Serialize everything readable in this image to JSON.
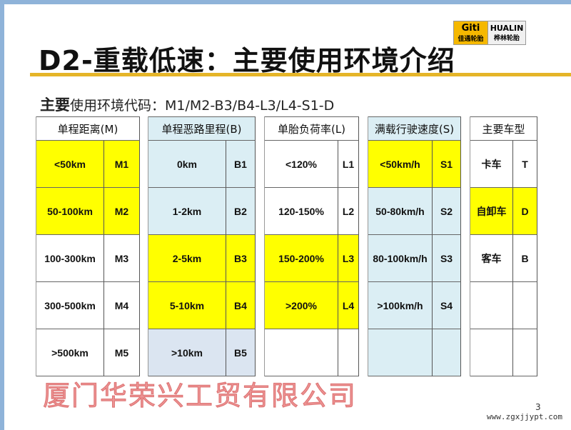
{
  "logos": {
    "giti_en": "Giti",
    "giti_cn": "佳通轮胎",
    "hualin_en": "HUALIN",
    "hualin_cn": "桦林轮胎"
  },
  "title": "D2-重载低速：主要使用环境介绍",
  "subtitle": {
    "bold": "主要",
    "rest": "使用环境代码：M1/M2-B3/B4-L3/L4-S1-D"
  },
  "colors": {
    "yellow": "#ffff00",
    "light_blue": "#dbeef4",
    "blue_gray": "#dbe5f1",
    "rule": "#e5b528"
  },
  "groups": [
    {
      "header": "单程距离(M)",
      "header_bg": "#ffffff",
      "rows": [
        {
          "value": "<50km",
          "code": "M1",
          "bg": "#ffff00"
        },
        {
          "value": "50-100km",
          "code": "M2",
          "bg": "#ffff00"
        },
        {
          "value": "100-300km",
          "code": "M3",
          "bg": "#ffffff"
        },
        {
          "value": "300-500km",
          "code": "M4",
          "bg": "#ffffff"
        },
        {
          "value": ">500km",
          "code": "M5",
          "bg": "#ffffff"
        }
      ]
    },
    {
      "header": "单程恶路里程(B)",
      "header_bg": "#dbeef4",
      "rows": [
        {
          "value": "0km",
          "code": "B1",
          "bg": "#dbeef4"
        },
        {
          "value": "1-2km",
          "code": "B2",
          "bg": "#dbeef4"
        },
        {
          "value": "2-5km",
          "code": "B3",
          "bg": "#ffff00"
        },
        {
          "value": "5-10km",
          "code": "B4",
          "bg": "#ffff00"
        },
        {
          "value": ">10km",
          "code": "B5",
          "bg": "#dbe5f1"
        }
      ]
    },
    {
      "header": "单胎负荷率(L)",
      "header_bg": "#ffffff",
      "rows": [
        {
          "value": "<120%",
          "code": "L1",
          "bg": "#ffffff"
        },
        {
          "value": "120-150%",
          "code": "L2",
          "bg": "#ffffff"
        },
        {
          "value": "150-200%",
          "code": "L3",
          "bg": "#ffff00"
        },
        {
          "value": ">200%",
          "code": "L4",
          "bg": "#ffff00"
        },
        {
          "value": "",
          "code": "",
          "bg": "#ffffff"
        }
      ]
    },
    {
      "header": "满载行驶速度(S)",
      "header_bg": "#dbeef4",
      "rows": [
        {
          "value": "<50km/h",
          "code": "S1",
          "bg": "#ffff00"
        },
        {
          "value": "50-80km/h",
          "code": "S2",
          "bg": "#dbeef4"
        },
        {
          "value": "80-100km/h",
          "code": "S3",
          "bg": "#dbeef4"
        },
        {
          "value": ">100km/h",
          "code": "S4",
          "bg": "#dbeef4"
        },
        {
          "value": "",
          "code": "",
          "bg": "#dbeef4"
        }
      ]
    },
    {
      "header": "主要车型",
      "header_bg": "#ffffff",
      "rows": [
        {
          "value": "卡车",
          "code": "T",
          "bg": "#ffffff"
        },
        {
          "value": "自卸车",
          "code": "D",
          "bg": "#ffff00"
        },
        {
          "value": "客车",
          "code": "B",
          "bg": "#ffffff"
        },
        {
          "value": "",
          "code": "",
          "bg": "#ffffff"
        },
        {
          "value": "",
          "code": "",
          "bg": "#ffffff"
        }
      ]
    }
  ],
  "watermark": "厦门华荣兴工贸有限公司",
  "footer_url": "www.zgxjjypt.com",
  "page_number": "3"
}
